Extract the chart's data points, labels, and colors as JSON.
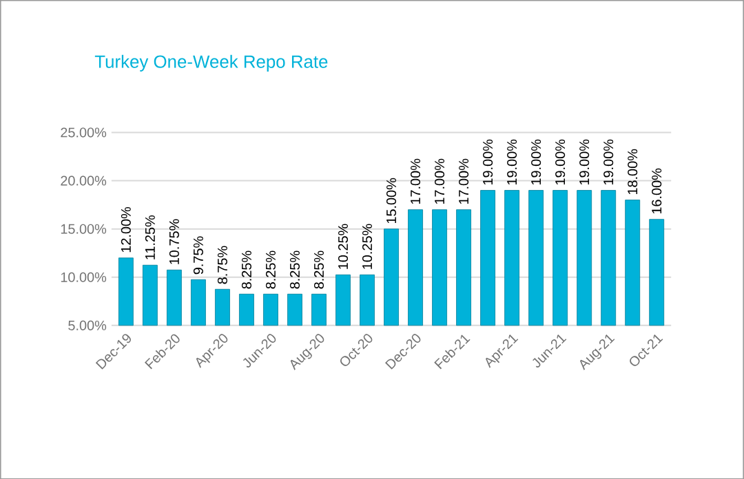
{
  "chart_data": {
    "type": "bar",
    "title": "Turkey One-Week Repo Rate",
    "categories": [
      "Dec-19",
      null,
      "Feb-20",
      null,
      "Apr-20",
      null,
      "Jun-20",
      null,
      "Aug-20",
      null,
      "Oct-20",
      null,
      "Dec-20",
      null,
      "Feb-21",
      null,
      "Apr-21",
      null,
      "Jun-21",
      null,
      "Aug-21",
      null,
      "Oct-21"
    ],
    "values": [
      12.0,
      11.25,
      10.75,
      9.75,
      8.75,
      8.25,
      8.25,
      8.25,
      8.25,
      10.25,
      10.25,
      15.0,
      17.0,
      17.0,
      17.0,
      19.0,
      19.0,
      19.0,
      19.0,
      19.0,
      19.0,
      18.0,
      16.0
    ],
    "value_labels": [
      "12.00%",
      "11.25%",
      "10.75%",
      "9.75%",
      "8.75%",
      "8.25%",
      "8.25%",
      "8.25%",
      "8.25%",
      "10.25%",
      "10.25%",
      "15.00%",
      "17.00%",
      "17.00%",
      "17.00%",
      "19.00%",
      "19.00%",
      "19.00%",
      "19.00%",
      "19.00%",
      "19.00%",
      "18.00%",
      "16.00%"
    ],
    "color": "#00b2d9",
    "ylim": [
      5,
      25
    ],
    "yticks": [
      {
        "value": 5,
        "label": "5.00%"
      },
      {
        "value": 10,
        "label": "10.00%"
      },
      {
        "value": 15,
        "label": "15.00%"
      },
      {
        "value": 20,
        "label": "20.00%"
      },
      {
        "value": 25,
        "label": "25.00%"
      }
    ],
    "grid": "y"
  }
}
